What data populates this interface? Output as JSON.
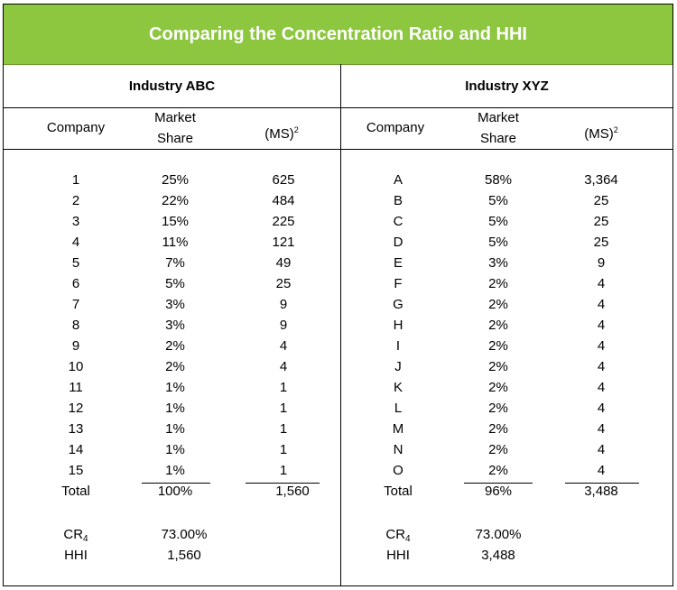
{
  "title": "Comparing the Concentration Ratio and HHI",
  "industries": [
    {
      "name": "Industry ABC",
      "headers": {
        "company": "Company",
        "market_share_line1": "Market",
        "market_share_line2": "Share",
        "ms_squared": "(MS)",
        "ms_squared_sup": "2"
      },
      "rows": [
        {
          "company": "1",
          "share": "25%",
          "ms2": "625"
        },
        {
          "company": "2",
          "share": "22%",
          "ms2": "484"
        },
        {
          "company": "3",
          "share": "15%",
          "ms2": "225"
        },
        {
          "company": "4",
          "share": "11%",
          "ms2": "121"
        },
        {
          "company": "5",
          "share": "7%",
          "ms2": "49"
        },
        {
          "company": "6",
          "share": "5%",
          "ms2": "25"
        },
        {
          "company": "7",
          "share": "3%",
          "ms2": "9"
        },
        {
          "company": "8",
          "share": "3%",
          "ms2": "9"
        },
        {
          "company": "9",
          "share": "2%",
          "ms2": "4"
        },
        {
          "company": "10",
          "share": "2%",
          "ms2": "4"
        },
        {
          "company": "11",
          "share": "1%",
          "ms2": "1"
        },
        {
          "company": "12",
          "share": "1%",
          "ms2": "1"
        },
        {
          "company": "13",
          "share": "1%",
          "ms2": "1"
        },
        {
          "company": "14",
          "share": "1%",
          "ms2": "1"
        },
        {
          "company": "15",
          "share": "1%",
          "ms2": "1"
        }
      ],
      "total": {
        "label": "Total",
        "share": "100%",
        "ms2": "1,560"
      },
      "cr4": {
        "label": "CR",
        "sub": "4",
        "value": "73.00%"
      },
      "hhi": {
        "label": "HHI",
        "value": "1,560"
      }
    },
    {
      "name": "Industry XYZ",
      "headers": {
        "company": "Company",
        "market_share_line1": "Market",
        "market_share_line2": "Share",
        "ms_squared": "(MS)",
        "ms_squared_sup": "2"
      },
      "rows": [
        {
          "company": "A",
          "share": "58%",
          "ms2": "3,364"
        },
        {
          "company": "B",
          "share": "5%",
          "ms2": "25"
        },
        {
          "company": "C",
          "share": "5%",
          "ms2": "25"
        },
        {
          "company": "D",
          "share": "5%",
          "ms2": "25"
        },
        {
          "company": "E",
          "share": "3%",
          "ms2": "9"
        },
        {
          "company": "F",
          "share": "2%",
          "ms2": "4"
        },
        {
          "company": "G",
          "share": "2%",
          "ms2": "4"
        },
        {
          "company": "H",
          "share": "2%",
          "ms2": "4"
        },
        {
          "company": "I",
          "share": "2%",
          "ms2": "4"
        },
        {
          "company": "J",
          "share": "2%",
          "ms2": "4"
        },
        {
          "company": "K",
          "share": "2%",
          "ms2": "4"
        },
        {
          "company": "L",
          "share": "2%",
          "ms2": "4"
        },
        {
          "company": "M",
          "share": "2%",
          "ms2": "4"
        },
        {
          "company": "N",
          "share": "2%",
          "ms2": "4"
        },
        {
          "company": "O",
          "share": "2%",
          "ms2": "4"
        }
      ],
      "total": {
        "label": "Total",
        "share": "96%",
        "ms2": "3,488"
      },
      "cr4": {
        "label": "CR",
        "sub": "4",
        "value": "73.00%"
      },
      "hhi": {
        "label": "HHI",
        "value": "3,488"
      }
    }
  ]
}
